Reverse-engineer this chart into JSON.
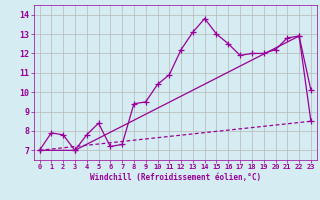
{
  "xlabel": "Windchill (Refroidissement éolien,°C)",
  "bg_color": "#d4ecf2",
  "line_color": "#990099",
  "grid_color": "#b8b8b8",
  "xlim": [
    -0.5,
    23.5
  ],
  "ylim": [
    6.5,
    14.5
  ],
  "xticks": [
    0,
    1,
    2,
    3,
    4,
    5,
    6,
    7,
    8,
    9,
    10,
    11,
    12,
    13,
    14,
    15,
    16,
    17,
    18,
    19,
    20,
    21,
    22,
    23
  ],
  "yticks": [
    7,
    8,
    9,
    10,
    11,
    12,
    13,
    14
  ],
  "line1_x": [
    0,
    1,
    2,
    3,
    4,
    5,
    6,
    7,
    8,
    9,
    10,
    11,
    12,
    13,
    14,
    15,
    16,
    17,
    18,
    19,
    20,
    21,
    22,
    23
  ],
  "line1_y": [
    7.0,
    7.9,
    7.8,
    7.0,
    7.8,
    8.4,
    7.2,
    7.3,
    9.4,
    9.5,
    10.4,
    10.9,
    12.2,
    13.1,
    13.8,
    13.0,
    12.5,
    11.9,
    12.0,
    12.0,
    12.2,
    12.8,
    12.9,
    10.1
  ],
  "line2_x": [
    0,
    3,
    22,
    23
  ],
  "line2_y": [
    7.0,
    7.0,
    12.9,
    8.5
  ],
  "line3_x": [
    0,
    23
  ],
  "line3_y": [
    7.0,
    8.5
  ],
  "marker": "+",
  "markersize": 4,
  "linewidth": 0.9
}
